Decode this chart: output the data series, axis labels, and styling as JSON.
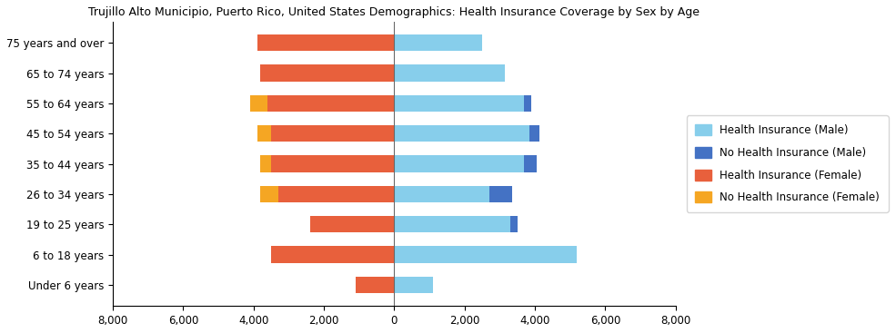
{
  "title": "Trujillo Alto Municipio, Puerto Rico, United States Demographics: Health Insurance Coverage by Sex by Age",
  "categories": [
    "Under 6 years",
    "6 to 18 years",
    "19 to 25 years",
    "26 to 34 years",
    "35 to 44 years",
    "45 to 54 years",
    "55 to 64 years",
    "65 to 74 years",
    "75 years and over"
  ],
  "health_ins_male": [
    1100,
    5200,
    3300,
    2700,
    3700,
    3850,
    3700,
    3150,
    2500
  ],
  "no_health_ins_male": [
    0,
    0,
    200,
    650,
    350,
    280,
    200,
    0,
    0
  ],
  "health_ins_female": [
    1100,
    3500,
    2400,
    3300,
    3500,
    3500,
    3600,
    3800,
    3900
  ],
  "no_health_ins_female": [
    0,
    0,
    0,
    500,
    300,
    400,
    500,
    0,
    0
  ],
  "color_health_ins_male": "#87CEEB",
  "color_no_health_ins_male": "#4472C4",
  "color_health_ins_female": "#E8603C",
  "color_no_health_ins_female": "#F5A623",
  "xlim": [
    -8000,
    8000
  ],
  "xticks": [
    -8000,
    -6000,
    -4000,
    -2000,
    0,
    2000,
    4000,
    6000,
    8000
  ],
  "xticklabels": [
    "8,000",
    "6,000",
    "4,000",
    "2,000",
    "0",
    "2,000",
    "4,000",
    "6,000",
    "8,000"
  ],
  "legend_labels": [
    "Health Insurance (Male)",
    "No Health Insurance (Male)",
    "Health Insurance (Female)",
    "No Health Insurance (Female)"
  ],
  "legend_colors": [
    "#87CEEB",
    "#4472C4",
    "#E8603C",
    "#F5A623"
  ],
  "bar_height": 0.55,
  "figsize": [
    9.85,
    3.67
  ],
  "dpi": 100
}
